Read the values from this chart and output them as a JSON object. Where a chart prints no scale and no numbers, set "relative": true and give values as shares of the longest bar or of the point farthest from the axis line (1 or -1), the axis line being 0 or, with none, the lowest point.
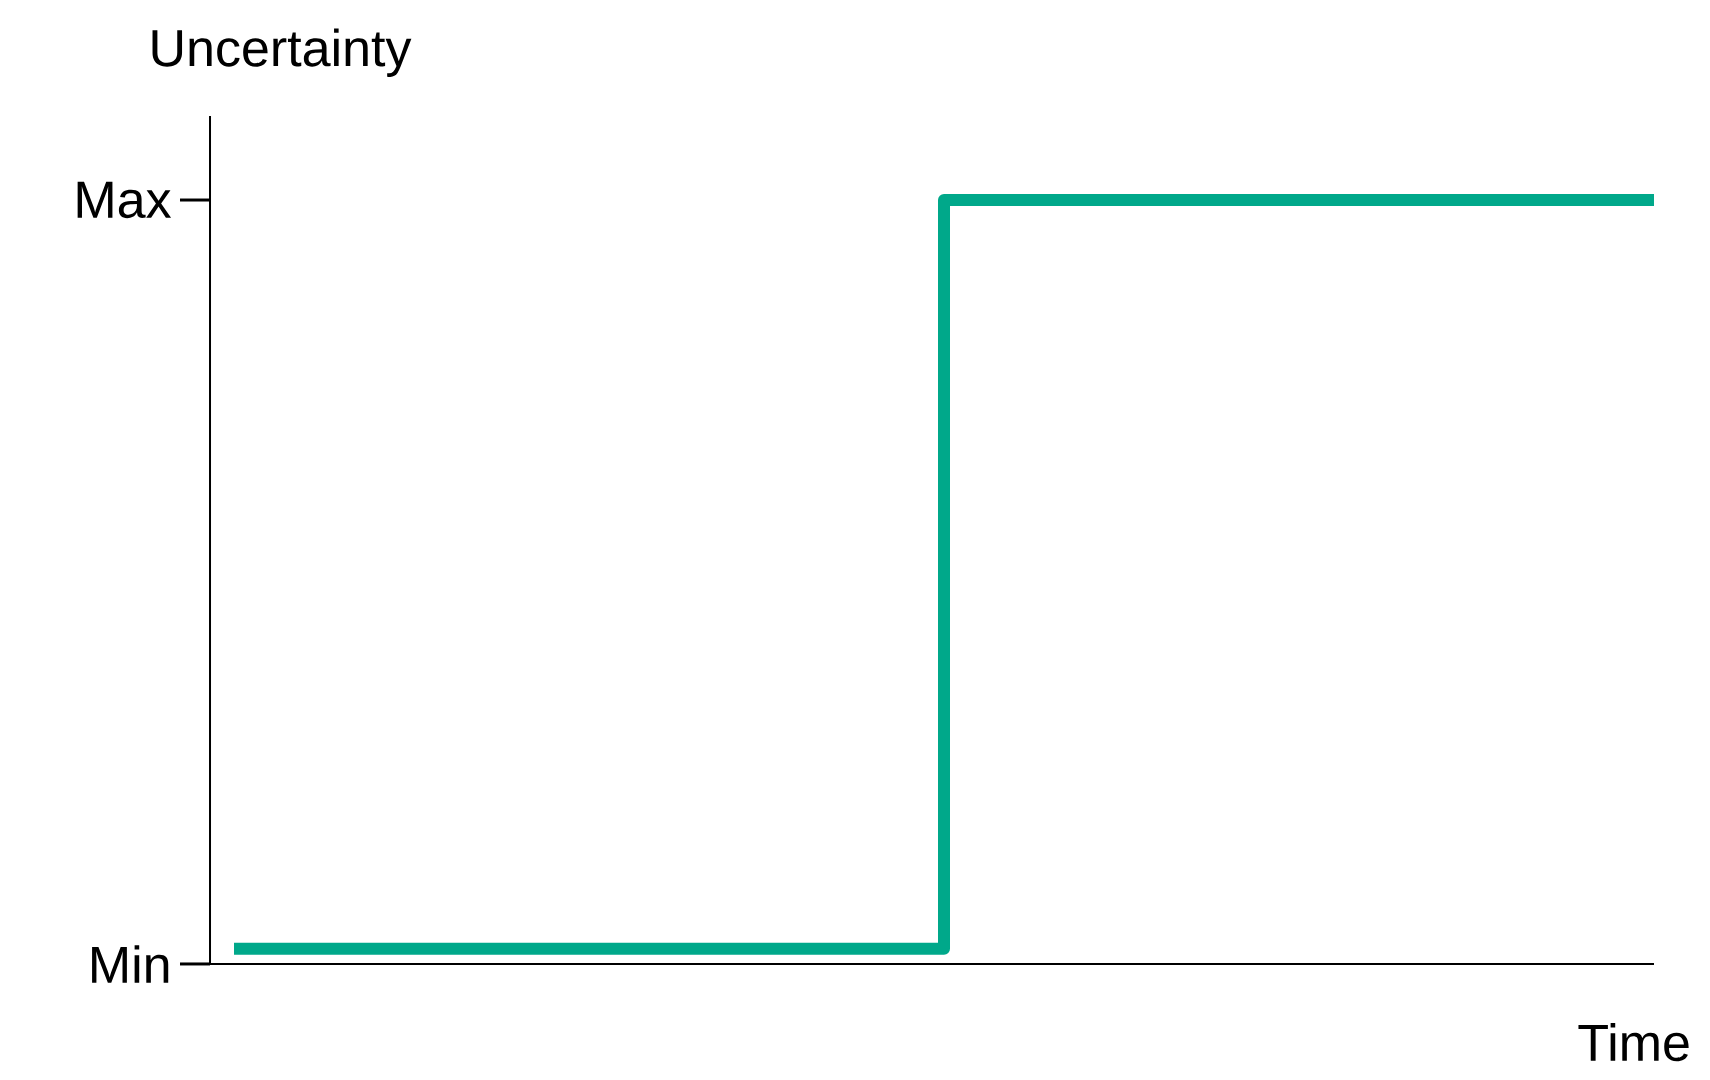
{
  "chart_data": {
    "type": "step",
    "ylabel": "Uncertainty",
    "xlabel": "Time",
    "categories": [
      null,
      null,
      null
    ],
    "values": [
      0.02,
      1,
      1
    ],
    "color": "#00a88a",
    "relative": true,
    "annotations": [
      "Max",
      "Min"
    ]
  }
}
